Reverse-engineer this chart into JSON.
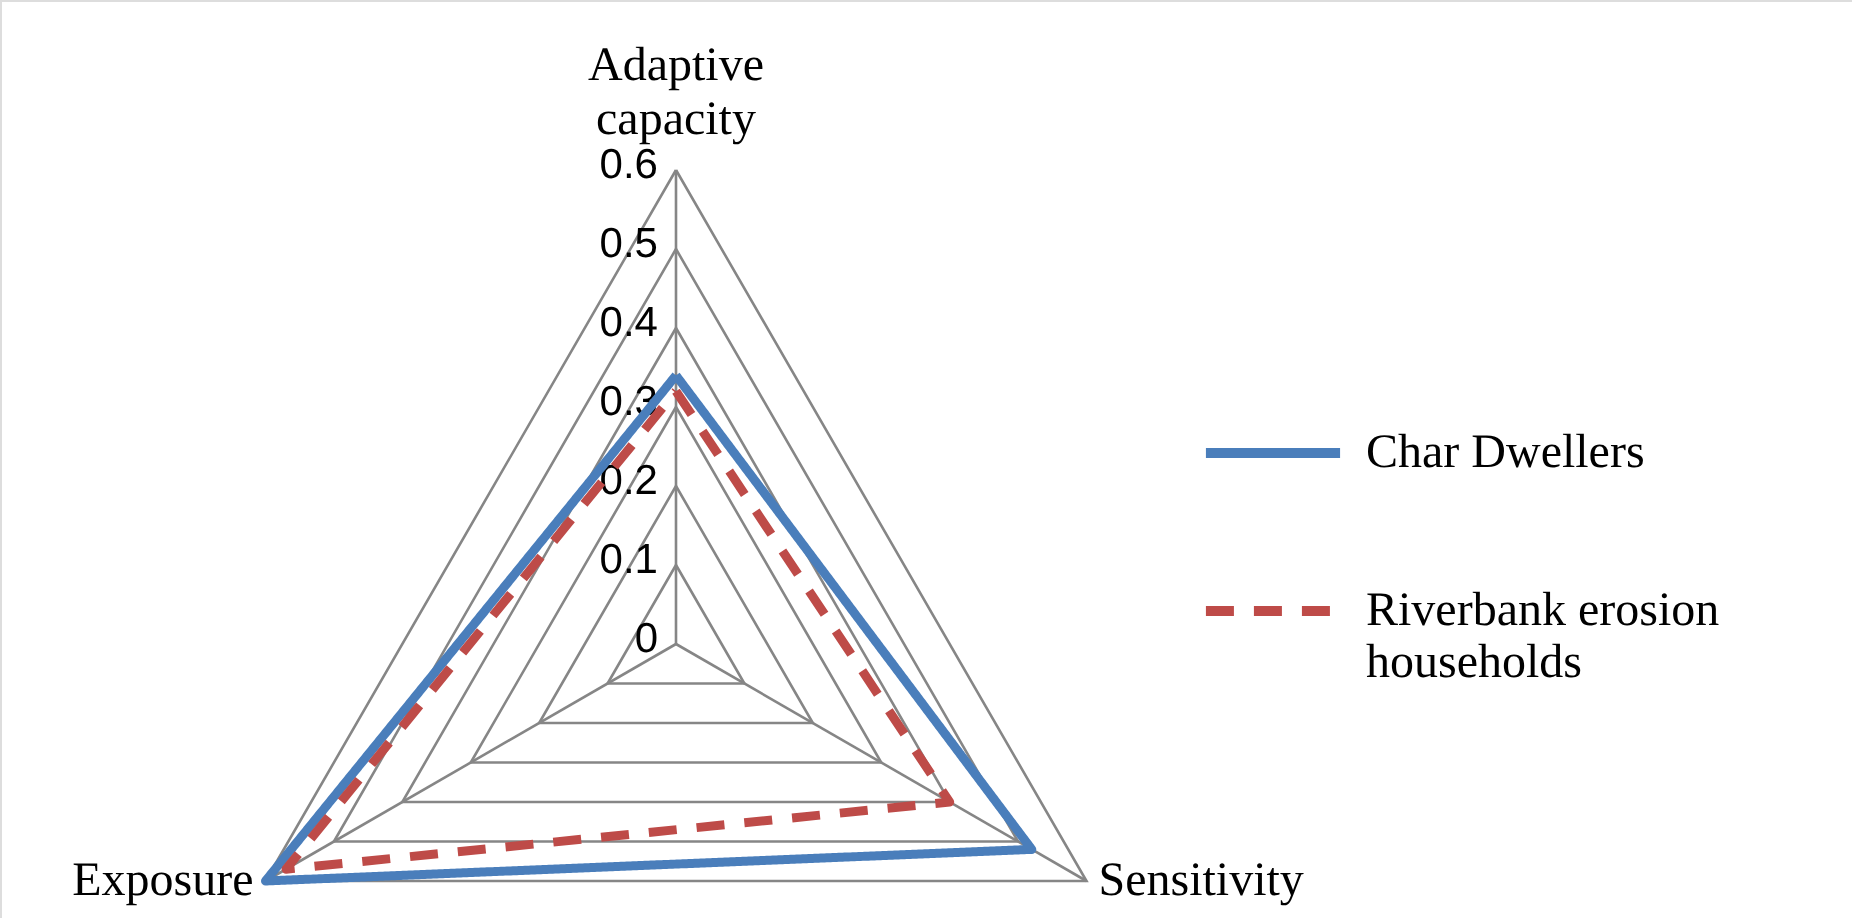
{
  "chart_data": {
    "type": "radar",
    "categories": [
      "Adaptive capacity",
      "Sensitivity",
      "Exposure"
    ],
    "ylim": [
      0,
      0.6
    ],
    "yticks": [
      0,
      0.1,
      0.2,
      0.3,
      0.4,
      0.5,
      0.6
    ],
    "grid": true,
    "legend": "right",
    "series": [
      {
        "name": "Char Dwellers",
        "color": "#4a7ebb",
        "values": [
          0.34,
          0.52,
          0.6
        ],
        "line_style": "solid"
      },
      {
        "name": "Riverbank erosion households",
        "color": "#be4b48",
        "values": [
          0.32,
          0.4,
          0.57
        ],
        "line_style": "dashed"
      }
    ]
  }
}
